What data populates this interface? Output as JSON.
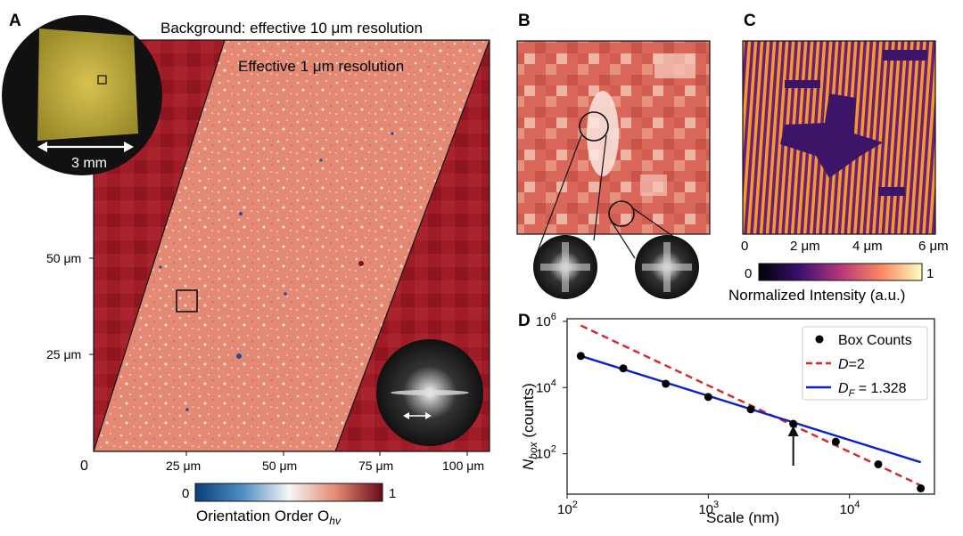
{
  "panels": {
    "A": {
      "letter": "A",
      "bg_title": "Background: effective 10 μm resolution",
      "inner_title": "Effective 1 μm resolution",
      "scale_label": "3 mm",
      "origin": "0",
      "x_ticks": [
        "25 μm",
        "50 μm",
        "75 μm",
        "100 μm"
      ],
      "y_ticks": [
        "50 μm",
        "25 μm"
      ],
      "colorbar": {
        "min": "0",
        "max": "1",
        "label": "Orientation Order O",
        "label_sub": "hv"
      }
    },
    "B": {
      "letter": "B"
    },
    "C": {
      "letter": "C",
      "x_ticks": [
        "0",
        "2 μm",
        "4 μm",
        "6 μm"
      ],
      "colorbar": {
        "min": "0",
        "max": "1",
        "label": "Normalized Intensity (a.u.)"
      }
    },
    "D": {
      "letter": "D"
    }
  },
  "colors": {
    "fig_red": "#9b1b24",
    "fig_strip": "#e0826f",
    "fig_blue": "#1f4e9c",
    "fit_blue": "#0a20c8",
    "ref_red": "#d62728"
  },
  "chart_data": {
    "type": "scatter",
    "x_scale": "log",
    "y_scale": "log",
    "xlabel": "Scale (nm)",
    "ylabel": "N",
    "ylabel_sub": "box",
    "ylabel_suffix": " (counts)",
    "xlim": [
      100,
      40000
    ],
    "ylim": [
      6,
      1200000
    ],
    "x_ticks": [
      {
        "v": 100,
        "t": "10",
        "e": "2"
      },
      {
        "v": 1000,
        "t": "10",
        "e": "3"
      },
      {
        "v": 10000,
        "t": "10",
        "e": "4"
      }
    ],
    "y_ticks": [
      {
        "v": 100,
        "t": "10",
        "e": "2"
      },
      {
        "v": 10000,
        "t": "10",
        "e": "4"
      },
      {
        "v": 1000000,
        "t": "10",
        "e": "6"
      }
    ],
    "series": [
      {
        "name": "Box Counts",
        "kind": "points",
        "x": [
          125,
          250,
          500,
          1000,
          2000,
          4000,
          8000,
          16000,
          32000
        ],
        "y": [
          90000,
          38000,
          13000,
          5200,
          2200,
          800,
          230,
          48,
          9
        ]
      },
      {
        "name": "D=2",
        "kind": "dashed",
        "x": [
          125,
          32000
        ],
        "y": [
          750000,
          11
        ]
      },
      {
        "name": "D_F = 1.328",
        "kind": "solid",
        "x": [
          125,
          32000
        ],
        "y": [
          90000,
          55
        ]
      }
    ],
    "legend": [
      {
        "text": "Box Counts"
      },
      {
        "pre": "D",
        "text": "=2"
      },
      {
        "pre": "D",
        "sub": "F",
        "text": " = 1.328"
      }
    ],
    "annotation": "arrow at 4000 nm"
  }
}
